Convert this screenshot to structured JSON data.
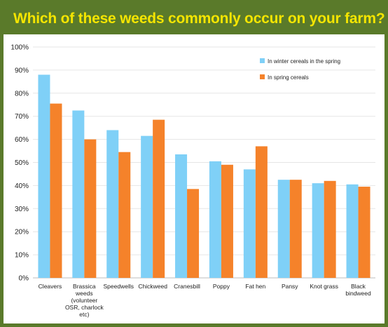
{
  "header": {
    "title": "Which of these weeds commonly occur on your farm?"
  },
  "colors": {
    "frame": "#5a7a2a",
    "title_text": "#f5e500",
    "series_winter": "#7fd0f7",
    "series_spring": "#f5822a",
    "grid": "#e6e6e6"
  },
  "chart_data": {
    "type": "bar",
    "title": "Which of these weeds commonly occur on your farm?",
    "categories": [
      [
        "Cleavers"
      ],
      [
        "Brassica",
        "weeds",
        "(volunteer",
        "OSR, charlock",
        "etc)"
      ],
      [
        "Speedwells"
      ],
      [
        "Chickweed"
      ],
      [
        "Cranesbill"
      ],
      [
        "Poppy"
      ],
      [
        "Fat hen"
      ],
      [
        "Pansy"
      ],
      [
        "Knot grass"
      ],
      [
        "Black",
        "bindweed"
      ]
    ],
    "series": [
      {
        "name": "In winter cereals in the spring",
        "color": "#7fd0f7",
        "values": [
          88,
          72.5,
          64,
          61.5,
          53.5,
          50.5,
          47,
          42.5,
          41,
          40.5
        ]
      },
      {
        "name": "In spring cereals",
        "color": "#f5822a",
        "values": [
          75.5,
          60,
          54.5,
          68.5,
          38.5,
          49,
          57,
          42.5,
          42,
          39.5
        ]
      }
    ],
    "ylim": [
      0,
      100
    ],
    "yticks": [
      "0%",
      "10%",
      "20%",
      "30%",
      "40%",
      "50%",
      "60%",
      "70%",
      "80%",
      "90%",
      "100%"
    ],
    "grid": true,
    "legend_position": "top-right",
    "xlabel": "",
    "ylabel": ""
  }
}
